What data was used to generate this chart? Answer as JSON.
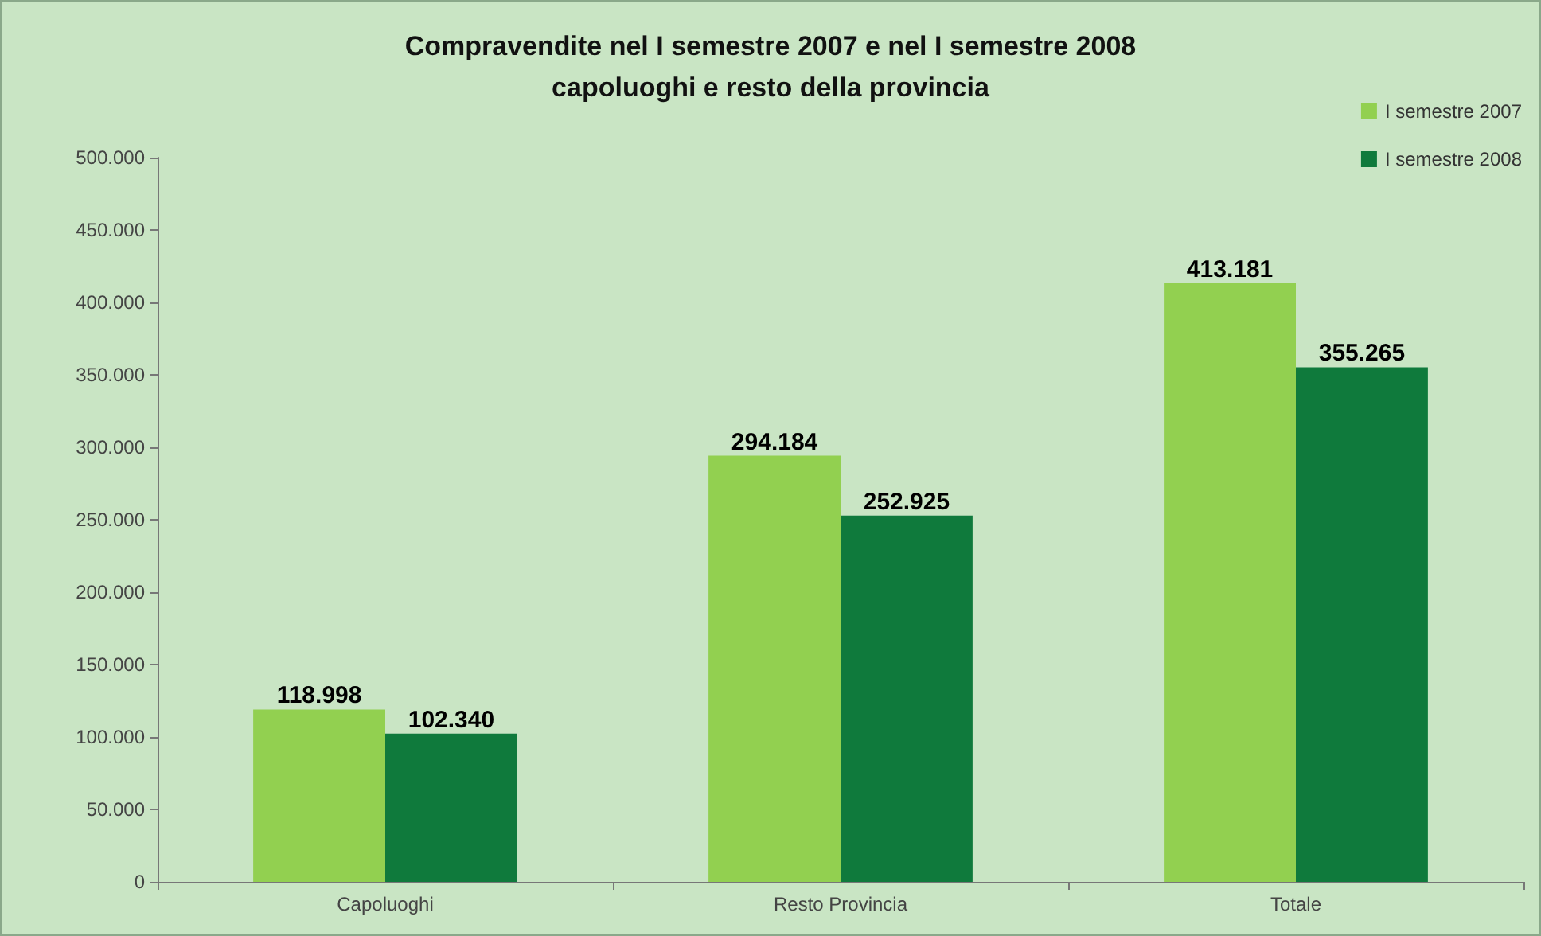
{
  "chart_data": {
    "type": "bar",
    "title": "Compravendite nel I semestre 2007 e nel I semestre 2008\ncapoluoghi e resto della provincia",
    "categories": [
      "Capoluoghi",
      "Resto Provincia",
      "Totale"
    ],
    "series": [
      {
        "name": "I semestre 2007",
        "color": "#92d050",
        "values": [
          118998,
          294184,
          413181
        ],
        "value_labels": [
          "118.998",
          "294.184",
          "413.181"
        ]
      },
      {
        "name": "I semestre 2008",
        "color": "#0f7a3c",
        "values": [
          102340,
          252925,
          355265
        ],
        "value_labels": [
          "102.340",
          "252.925",
          "355.265"
        ]
      }
    ],
    "ylim": [
      0,
      500000
    ],
    "yticks": [
      {
        "value": 0,
        "label": "0"
      },
      {
        "value": 50000,
        "label": "50.000"
      },
      {
        "value": 100000,
        "label": "100.000"
      },
      {
        "value": 150000,
        "label": "150.000"
      },
      {
        "value": 200000,
        "label": "200.000"
      },
      {
        "value": 250000,
        "label": "250.000"
      },
      {
        "value": 300000,
        "label": "300.000"
      },
      {
        "value": 350000,
        "label": "350.000"
      },
      {
        "value": 400000,
        "label": "400.000"
      },
      {
        "value": 450000,
        "label": "450.000"
      },
      {
        "value": 500000,
        "label": "500.000"
      }
    ],
    "grid": false,
    "legend": "top right"
  }
}
